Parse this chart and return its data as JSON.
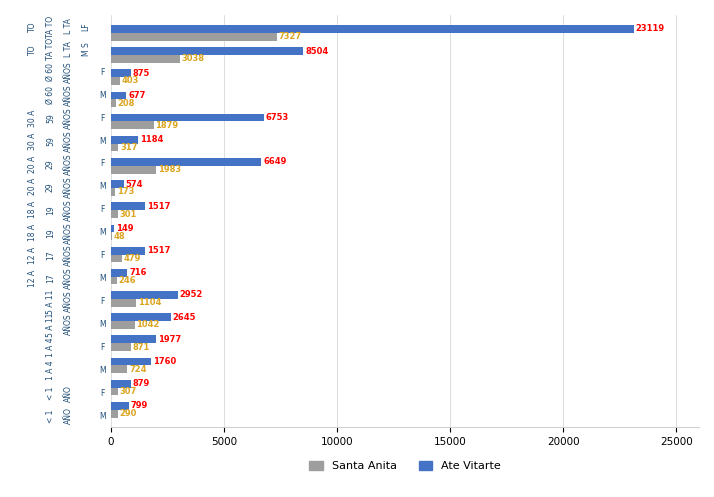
{
  "santa_anita": [
    7327,
    3038,
    403,
    208,
    1879,
    317,
    1983,
    173,
    301,
    48,
    479,
    246,
    1104,
    1042,
    871,
    724,
    307,
    290
  ],
  "ate_vitarte": [
    23119,
    8504,
    875,
    677,
    6753,
    1184,
    6649,
    574,
    1517,
    149,
    1517,
    716,
    2952,
    2645,
    1977,
    1760,
    879,
    799
  ],
  "santa_anita_color": "#9E9E9E",
  "ate_vitarte_color": "#4472C4",
  "value_color_santa": "#DAA520",
  "value_color_ate": "#FF0000",
  "label_color": "#1F4E79",
  "xlim": [
    0,
    26000
  ],
  "xticks": [
    0,
    5000,
    10000,
    15000,
    20000,
    25000
  ],
  "legend_santa": "Santa Anita",
  "legend_ate": "Ate Vitarte",
  "bar_height": 0.35,
  "row_labels": [
    [
      "TO",
      "TA TO",
      "L TA",
      "LF",
      ""
    ],
    [
      "TO",
      "TA TO",
      "L TA",
      "M S",
      ""
    ],
    [
      "",
      "Ø 60",
      "AÑOS",
      "",
      "F"
    ],
    [
      "",
      "Ø 60",
      "AÑOS",
      "",
      "M"
    ],
    [
      "30 A",
      "59",
      "AÑOS",
      "",
      "F"
    ],
    [
      "30 A",
      "59",
      "AÑOS",
      "",
      "M"
    ],
    [
      "20 A",
      "29",
      "AÑOS",
      "",
      "F"
    ],
    [
      "20 A",
      "29",
      "AÑOS",
      "",
      "M"
    ],
    [
      "18 A",
      "19",
      "AÑOS",
      "",
      "F"
    ],
    [
      "18 A",
      "19",
      "AÑOS",
      "",
      "M"
    ],
    [
      "12 A",
      "17",
      "AÑOS",
      "",
      "F"
    ],
    [
      "12 A",
      "17",
      "AÑOS",
      "",
      "M"
    ],
    [
      "",
      "5 A 11",
      "AÑOS",
      "",
      "F"
    ],
    [
      "",
      "5 A 11",
      "AÑOS",
      "",
      "M"
    ],
    [
      "",
      "1 A 4",
      "",
      "",
      "F"
    ],
    [
      "",
      "1 A 4",
      "",
      "",
      "M"
    ],
    [
      "",
      "< 1",
      "AÑO",
      "",
      "F"
    ],
    [
      "",
      "< 1",
      "AÑO",
      "",
      "M"
    ]
  ]
}
